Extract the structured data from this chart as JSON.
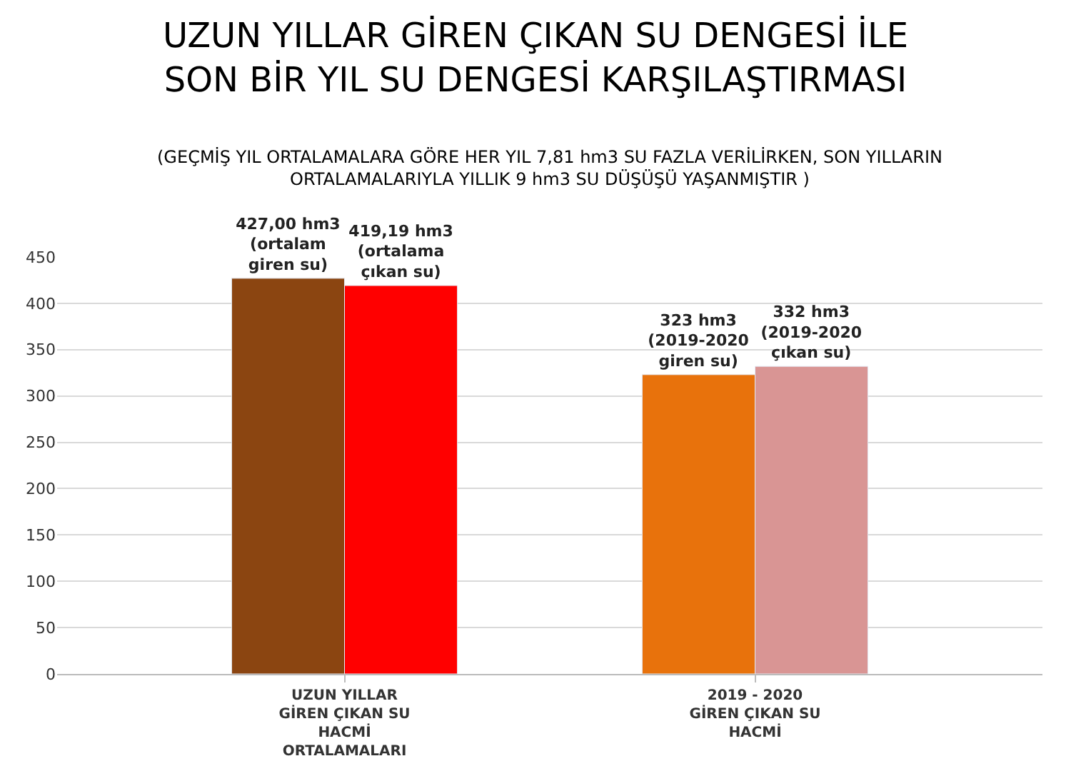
{
  "chart_data": {
    "type": "bar",
    "title": "UZUN YILLAR GİREN ÇIKAN SU DENGESİ İLE SON BİR YIL SU DENGESİ KARŞILAŞTIRMASI",
    "subtitle": "(GEÇMİŞ YIL ORTALAMALARA GÖRE HER YIL 7,81 hm3 SU FAZLA VERİLİRKEN, SON YILLARIN ORTALAMALARIYLA YILLIK 9 hm3 SU DÜŞÜŞÜ YAŞANMIŞTIR )",
    "categories": [
      "UZUN YILLAR GİREN ÇIKAN SU HACMİ ORTALAMALARI",
      "2019 - 2020 GİREN ÇIKAN SU HACMİ"
    ],
    "series": [
      {
        "values": [
          427.0,
          323
        ],
        "colors": [
          "#8b4511",
          "#e8720c"
        ],
        "value_labels": [
          "427,00 hm3 (ortalam giren su)",
          "323 hm3 (2019-2020 giren su)"
        ]
      },
      {
        "values": [
          419.19,
          332
        ],
        "colors": [
          "#ff0000",
          "#d99594"
        ],
        "value_labels": [
          "419,19 hm3 (ortalama çıkan su)",
          "332 hm3 (2019-2020 çıkan su)"
        ]
      }
    ],
    "ylim": [
      0,
      450
    ],
    "yticks": [
      0,
      50,
      100,
      150,
      200,
      250,
      300,
      350,
      400,
      450
    ],
    "grid": "y",
    "legend": false
  }
}
